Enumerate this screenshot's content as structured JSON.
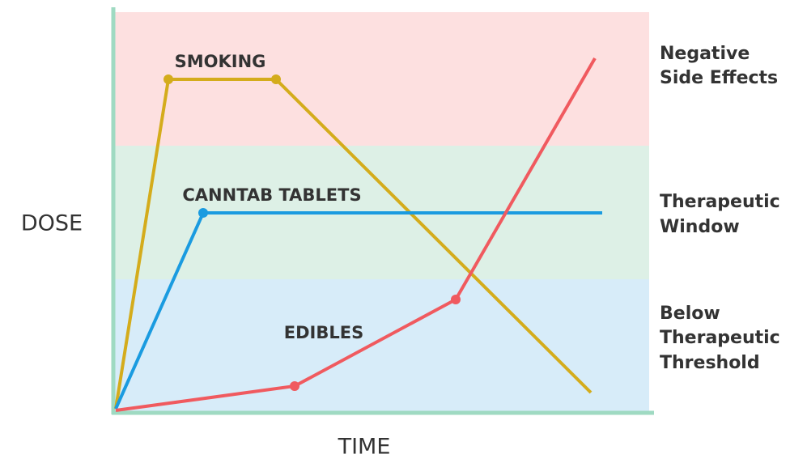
{
  "axes": {
    "y_label": "DOSE",
    "x_label": "TIME"
  },
  "zones": [
    {
      "label": [
        "Negative",
        "Side Effects"
      ]
    },
    {
      "label": [
        "Therapeutic",
        "Window"
      ]
    },
    {
      "label": [
        "Below",
        "Therapeutic",
        "Threshold"
      ]
    }
  ],
  "series": [
    {
      "label": "SMOKING"
    },
    {
      "label": "CANNTAB TABLETS"
    },
    {
      "label": "EDIBLES"
    }
  ]
}
